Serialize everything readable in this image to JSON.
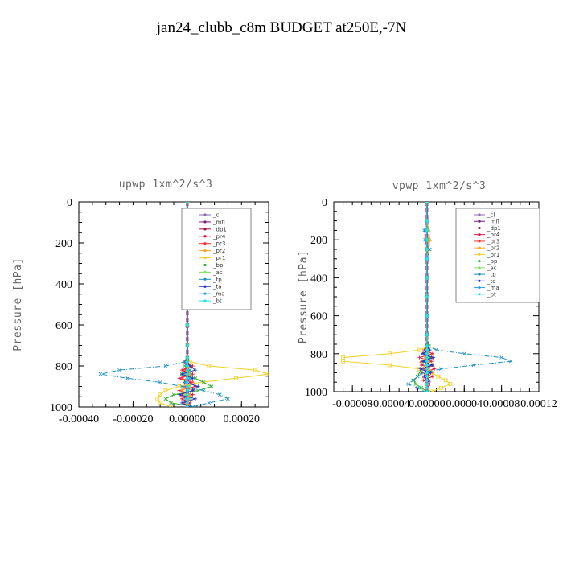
{
  "figure": {
    "title": "jan24_clubb_c8m  BUDGET at250E,-7N"
  },
  "legend_entries": [
    "_cl",
    "_mfl",
    "_dp1",
    "_pr4",
    "_pr3",
    "_pr2",
    "_pr1",
    "_bp",
    "_ac",
    "_tp",
    "_ta",
    "_ma",
    "_bt"
  ],
  "colors": {
    "_cl": "#8c6bb1",
    "_mfl": "#7a1c7a",
    "_dp1": "#a01040",
    "_pr4": "#e0103c",
    "_pr3": "#ff3030",
    "_pr2": "#ffa020",
    "_pr1": "#f0d020",
    "_bp": "#30b030",
    "_ac": "#80e060",
    "_tp": "#2090c0",
    "_ta": "#2030d0",
    "_ma": "#30a0e0",
    "_bt": "#20e0f0"
  },
  "chart_data": [
    {
      "type": "line",
      "title": "upwp  1xm^2/s^3",
      "ylabel": "Pressure [hPa]",
      "xlabel": "",
      "xlim": [
        -0.0004,
        0.0003
      ],
      "ylim": [
        1000,
        0
      ],
      "xticks": [
        "-0.00040",
        "-0.00020",
        "0.00000",
        "0.00020"
      ],
      "xtick_values": [
        -0.0004,
        -0.0002,
        0.0,
        0.0002
      ],
      "yticks": [
        "0",
        "200",
        "400",
        "600",
        "800",
        "1000"
      ],
      "ytick_values": [
        0,
        200,
        400,
        600,
        800,
        1000
      ],
      "legend_position": "top-right",
      "pressure": [
        0,
        100,
        200,
        300,
        400,
        500,
        600,
        700,
        760,
        780,
        800,
        820,
        840,
        860,
        880,
        900,
        920,
        940,
        960,
        980,
        1000
      ],
      "series": [
        {
          "name": "_cl",
          "values": [
            0,
            0,
            0,
            0,
            0,
            0,
            0,
            0,
            0,
            0,
            0,
            0,
            0,
            0,
            0,
            0,
            0,
            0,
            0,
            0,
            0
          ]
        },
        {
          "name": "_mfl",
          "values": [
            0,
            0,
            0,
            0,
            0,
            0,
            0,
            0,
            0,
            0,
            0,
            0,
            0,
            0,
            0,
            0,
            0,
            0,
            0,
            0,
            0
          ]
        },
        {
          "name": "_dp1",
          "values": [
            0,
            0,
            0,
            0,
            0,
            0,
            0,
            0,
            0,
            0,
            0,
            0,
            0,
            0,
            0,
            0,
            0,
            0,
            0,
            0,
            0
          ]
        },
        {
          "name": "_pr4",
          "values": [
            0,
            0,
            0,
            0,
            0,
            0,
            0,
            0,
            0,
            -1e-05,
            2e-05,
            -2e-05,
            2e-05,
            -3e-05,
            1e-05,
            3e-05,
            -3e-05,
            2e-05,
            -2e-05,
            1e-05,
            0
          ]
        },
        {
          "name": "_pr3",
          "values": [
            0,
            0,
            0,
            0,
            0,
            0,
            0,
            0,
            0,
            0,
            1e-05,
            -1e-05,
            1e-05,
            -2e-05,
            2e-05,
            -1e-05,
            2e-05,
            -2e-05,
            1e-05,
            -1e-05,
            0
          ]
        },
        {
          "name": "_pr2",
          "values": [
            0,
            0,
            0,
            0,
            0,
            0,
            0,
            0,
            0,
            0,
            1e-05,
            0,
            -1e-05,
            1e-05,
            -1e-05,
            1e-05,
            -2e-05,
            1e-05,
            0,
            0,
            0
          ]
        },
        {
          "name": "_pr1",
          "values": [
            0,
            0,
            0,
            0,
            0,
            0,
            0,
            0,
            0,
            1e-05,
            8e-05,
            0.00025,
            0.0003,
            0.00018,
            5e-05,
            -3e-05,
            -8e-05,
            -0.0001,
            -0.00011,
            -0.0001,
            -6e-05
          ]
        },
        {
          "name": "_bp",
          "values": [
            0,
            0,
            0,
            0,
            0,
            0,
            0,
            0,
            0,
            0,
            -1e-05,
            1e-05,
            -2e-05,
            3e-05,
            6e-05,
            9e-05,
            4e-05,
            -5e-05,
            -8e-05,
            -6e-05,
            3e-05
          ]
        },
        {
          "name": "_ac",
          "values": [
            0,
            0,
            0,
            0,
            0,
            0,
            0,
            0,
            0,
            0,
            0,
            0,
            1e-05,
            0,
            -1e-05,
            1e-05,
            0,
            -1e-05,
            1e-05,
            0,
            0
          ]
        },
        {
          "name": "_tp",
          "values": [
            0,
            0,
            0,
            0,
            0,
            0,
            0,
            0,
            0,
            -1e-05,
            -8e-05,
            -0.00025,
            -0.00032,
            -0.00022,
            -0.0001,
            -2e-05,
            6e-05,
            0.00012,
            0.00015,
            8e-05,
            2e-05
          ]
        },
        {
          "name": "_ta",
          "values": [
            0,
            0,
            0,
            0,
            0,
            0,
            0,
            0,
            0,
            0,
            1e-05,
            3e-05,
            -2e-05,
            2e-05,
            -1e-05,
            4e-05,
            2e-05,
            -3e-05,
            3e-05,
            -2e-05,
            1e-05
          ]
        },
        {
          "name": "_ma",
          "values": [
            0,
            0,
            0,
            0,
            0,
            0,
            0,
            0,
            0,
            0,
            -1e-05,
            1e-05,
            0,
            1e-05,
            -1e-05,
            0,
            1e-05,
            0,
            -1e-05,
            0,
            0
          ]
        },
        {
          "name": "_bt",
          "values": [
            0,
            0,
            0,
            0,
            0,
            0,
            0,
            0,
            0,
            0,
            0,
            0,
            0,
            0,
            0,
            0,
            0,
            0,
            0,
            0,
            0
          ]
        }
      ]
    },
    {
      "type": "line",
      "title": "vpwp  1xm^2/s^3",
      "ylabel": "Pressure [hPa]",
      "xlabel": "",
      "xlim": [
        -0.0001,
        0.00012
      ],
      "ylim": [
        1000,
        0
      ],
      "xticks": [
        "-0.00008",
        "-0.00004",
        "0.00000",
        "0.00004",
        "0.00008",
        "0.00012"
      ],
      "xtick_values": [
        -8e-05,
        -4e-05,
        0.0,
        4e-05,
        8e-05,
        0.00012
      ],
      "yticks": [
        "0",
        "200",
        "400",
        "600",
        "800",
        "1000"
      ],
      "ytick_values": [
        0,
        200,
        400,
        600,
        800,
        1000
      ],
      "legend_position": "top-right",
      "pressure": [
        0,
        100,
        150,
        200,
        250,
        300,
        400,
        500,
        600,
        700,
        760,
        780,
        800,
        820,
        840,
        860,
        880,
        900,
        920,
        940,
        960,
        980,
        1000
      ],
      "series": [
        {
          "name": "_cl",
          "values": [
            0,
            0,
            0,
            0,
            0,
            0,
            0,
            0,
            0,
            0,
            0,
            0,
            0,
            0,
            0,
            0,
            0,
            0,
            0,
            0,
            0,
            0,
            0
          ]
        },
        {
          "name": "_mfl",
          "values": [
            0,
            0,
            0,
            0,
            0,
            0,
            0,
            0,
            0,
            0,
            0,
            0,
            0,
            0,
            0,
            0,
            0,
            0,
            0,
            0,
            0,
            0,
            0
          ]
        },
        {
          "name": "_dp1",
          "values": [
            0,
            0,
            0,
            0,
            0,
            0,
            0,
            0,
            0,
            0,
            0,
            0,
            0,
            0,
            0,
            0,
            0,
            0,
            0,
            0,
            0,
            0,
            0
          ]
        },
        {
          "name": "_pr4",
          "values": [
            0,
            0,
            0,
            0,
            0,
            0,
            0,
            0,
            0,
            0,
            0,
            -3e-06,
            6e-06,
            -8e-06,
            5e-06,
            -6e-06,
            8e-06,
            -5e-06,
            6e-06,
            -4e-06,
            3e-06,
            0,
            0
          ]
        },
        {
          "name": "_pr3",
          "values": [
            0,
            0,
            0,
            0,
            0,
            0,
            0,
            0,
            0,
            0,
            0,
            2e-06,
            -4e-06,
            5e-06,
            -6e-06,
            6e-06,
            -4e-06,
            5e-06,
            -3e-06,
            2e-06,
            0,
            0,
            0
          ]
        },
        {
          "name": "_pr2",
          "values": [
            0,
            0,
            2e-06,
            3e-06,
            2e-06,
            0,
            0,
            0,
            0,
            0,
            0,
            0,
            2e-06,
            -2e-06,
            2e-06,
            -1e-06,
            2e-06,
            0,
            0,
            0,
            0,
            0,
            0
          ]
        },
        {
          "name": "_pr1",
          "values": [
            0,
            0,
            0,
            0,
            0,
            0,
            0,
            0,
            0,
            0,
            2e-06,
            -8e-06,
            -4e-05,
            -9e-05,
            -9e-05,
            -4e-05,
            -8e-06,
            5e-06,
            1.2e-05,
            2e-05,
            2.5e-05,
            1.5e-05,
            5e-06
          ]
        },
        {
          "name": "_bp",
          "values": [
            0,
            0,
            0,
            0,
            0,
            0,
            0,
            0,
            0,
            0,
            0,
            0,
            -2e-06,
            3e-06,
            -4e-06,
            5e-06,
            -6e-06,
            -8e-06,
            -1e-05,
            -1.4e-05,
            -1.2e-05,
            -6e-06,
            0
          ]
        },
        {
          "name": "_ac",
          "values": [
            0,
            0,
            0,
            0,
            0,
            0,
            0,
            0,
            0,
            0,
            0,
            0,
            0,
            1e-06,
            0,
            -1e-06,
            0,
            2e-06,
            -1e-06,
            0,
            0,
            0,
            0
          ]
        },
        {
          "name": "_tp",
          "values": [
            0,
            0,
            -3e-06,
            -2e-06,
            3e-06,
            0,
            0,
            0,
            0,
            0,
            2e-06,
            1e-05,
            4e-05,
            8e-05,
            9e-05,
            5e-05,
            1.5e-05,
            -4e-06,
            -1e-05,
            -1.5e-05,
            -2e-05,
            -1e-05,
            -3e-06
          ]
        },
        {
          "name": "_ta",
          "values": [
            0,
            0,
            0,
            0,
            0,
            0,
            0,
            0,
            0,
            0,
            0,
            3e-06,
            -5e-06,
            7e-06,
            -4e-06,
            6e-06,
            -7e-06,
            4e-06,
            -3e-06,
            2e-06,
            0,
            0,
            0
          ]
        },
        {
          "name": "_ma",
          "values": [
            0,
            0,
            0,
            0,
            0,
            0,
            0,
            0,
            0,
            0,
            0,
            0,
            1e-06,
            0,
            -1e-06,
            1e-06,
            0,
            0,
            0,
            0,
            0,
            0,
            0
          ]
        },
        {
          "name": "_bt",
          "values": [
            0,
            0,
            0,
            0,
            0,
            0,
            0,
            0,
            0,
            0,
            0,
            0,
            0,
            0,
            0,
            0,
            0,
            0,
            0,
            0,
            0,
            0,
            0
          ]
        }
      ]
    }
  ]
}
